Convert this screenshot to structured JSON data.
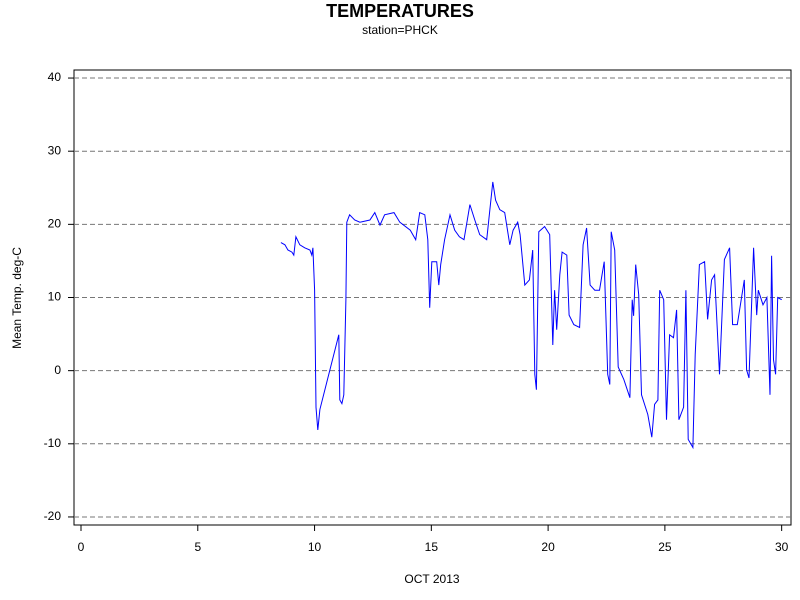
{
  "chart_data": {
    "type": "line",
    "title": "TEMPERATURES",
    "subtitle": "station=PHCK",
    "y_label": "Mean Temp. deg-C",
    "x_label": "OCT 2013",
    "color": "#0000ff",
    "grid": true,
    "xlim": [
      -0.3,
      30.4
    ],
    "xticks": [
      0,
      5,
      10,
      15,
      20,
      25,
      30
    ],
    "ylim": [
      -21.1,
      41.1
    ],
    "yticks": [
      -20,
      -10,
      0,
      10,
      20,
      30,
      40
    ],
    "x": [
      8.56,
      8.73,
      8.86,
      9.03,
      9.11,
      9.2,
      9.37,
      9.58,
      9.8,
      9.88,
      9.93,
      10.0,
      10.06,
      10.14,
      10.23,
      11.04,
      11.08,
      11.17,
      11.25,
      11.34,
      11.38,
      11.5,
      11.72,
      11.94,
      12.37,
      12.58,
      12.8,
      13.0,
      13.4,
      13.65,
      14.1,
      14.33,
      14.5,
      14.72,
      14.85,
      14.93,
      15.02,
      15.23,
      15.32,
      15.4,
      15.57,
      15.8,
      16.0,
      16.2,
      16.4,
      16.65,
      16.86,
      17.07,
      17.37,
      17.63,
      17.75,
      17.93,
      18.14,
      18.36,
      18.5,
      18.7,
      18.8,
      19.0,
      19.2,
      19.34,
      19.43,
      19.5,
      19.6,
      19.85,
      20.07,
      20.2,
      20.28,
      20.37,
      20.5,
      20.6,
      20.8,
      20.9,
      21.1,
      21.35,
      21.5,
      21.65,
      21.8,
      22.0,
      22.2,
      22.4,
      22.55,
      22.64,
      22.7,
      22.85,
      23.0,
      23.24,
      23.5,
      23.6,
      23.66,
      23.75,
      23.88,
      24.0,
      24.27,
      24.44,
      24.56,
      24.7,
      24.78,
      24.95,
      25.07,
      25.2,
      25.37,
      25.5,
      25.6,
      25.8,
      25.9,
      26.0,
      26.2,
      26.3,
      26.48,
      26.7,
      26.83,
      27.0,
      27.13,
      27.34,
      27.55,
      27.77,
      27.9,
      28.1,
      28.4,
      28.5,
      28.6,
      28.8,
      28.93,
      29.0,
      29.2,
      29.37,
      29.5,
      29.57,
      29.65,
      29.74,
      29.83,
      30.0
    ],
    "values": [
      17.5,
      17.2,
      16.5,
      16.2,
      15.8,
      18.3,
      17.2,
      16.8,
      16.5,
      15.8,
      16.8,
      11,
      -5,
      -8.1,
      -5.3,
      4.9,
      -4,
      -4.5,
      -3.3,
      9.7,
      20.3,
      21.3,
      20.6,
      20.3,
      20.6,
      21.6,
      19.9,
      21.3,
      21.6,
      20.3,
      19.2,
      17.9,
      21.6,
      21.3,
      17.9,
      8.6,
      14.9,
      14.9,
      11.7,
      14.5,
      17.9,
      21.3,
      19.2,
      18.3,
      17.9,
      22.7,
      20.6,
      18.6,
      17.9,
      25.8,
      23.3,
      22.0,
      21.6,
      17.2,
      19.2,
      20.3,
      18.6,
      11.7,
      12.4,
      16.5,
      -0.5,
      -2.6,
      19,
      19.7,
      18.6,
      3.5,
      11,
      5.6,
      13.1,
      16.2,
      15.8,
      7.6,
      6.3,
      5.9,
      17.2,
      19.5,
      11.7,
      11,
      11,
      14.9,
      -0.5,
      -1.9,
      19,
      16.5,
      0.5,
      -1.2,
      -3.7,
      9.7,
      7.5,
      14.5,
      10.4,
      -3.3,
      -6,
      -9.1,
      -4.6,
      -4,
      11,
      9.7,
      -6.7,
      4.9,
      4.5,
      8.3,
      -6.7,
      -5,
      11,
      -9.4,
      -10.5,
      2.2,
      14.5,
      14.9,
      7,
      12.4,
      13.1,
      -0.5,
      15.2,
      16.8,
      6.3,
      6.3,
      12.4,
      0.1,
      -1,
      16.8,
      7.6,
      11,
      9,
      10,
      -3.3,
      15.7,
      1.5,
      -0.5,
      10,
      9.7
    ]
  }
}
